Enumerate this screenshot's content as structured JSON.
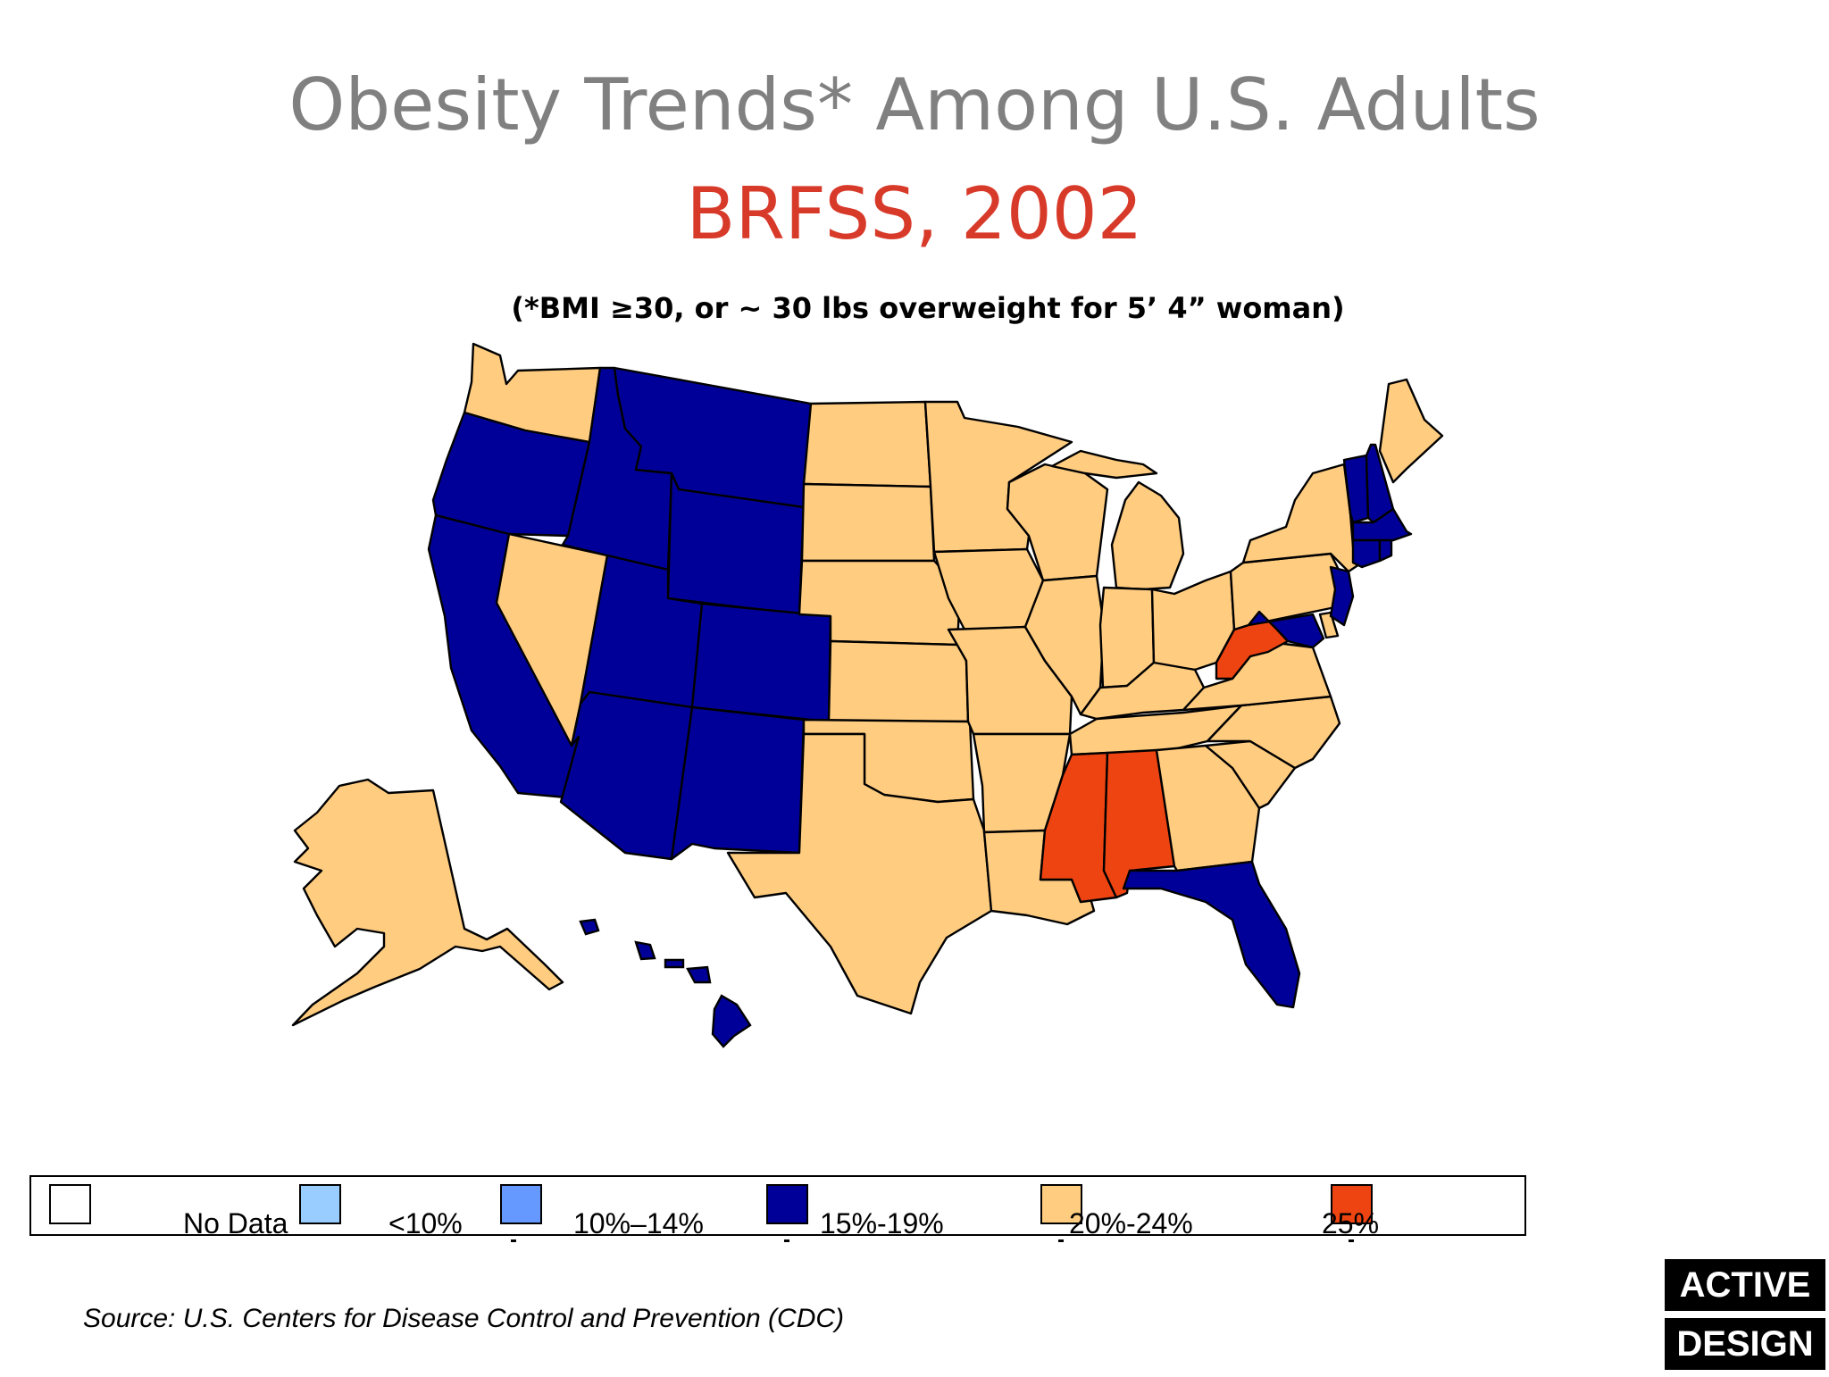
{
  "title": "Obesity Trends* Among U.S. Adults",
  "subtitle": "BRFSS, 2002",
  "note": "(*BMI ≥30, or ~ 30 lbs overweight for 5’ 4” woman)",
  "colors": {
    "no_data": "#ffffff",
    "lt10": "#99ccff",
    "10_14": "#6699ff",
    "15_19": "#000099",
    "20_24": "#ffcc80",
    "25plus": "#ee4411"
  },
  "legend": [
    {
      "label": "No Data",
      "color": "#ffffff"
    },
    {
      "label": "<10%",
      "color": "#99ccff"
    },
    {
      "label": "10%–14%",
      "color": "#6699ff"
    },
    {
      "label": "15%-19%",
      "color": "#000099"
    },
    {
      "label": "20%-24%",
      "color": "#ffcc80"
    },
    {
      "label": "25%",
      "color": "#ee4411"
    }
  ],
  "states": {
    "Washington": "20-24",
    "Oregon": "15-19",
    "California": "15-19",
    "Idaho": "15-19",
    "Nevada": "20-24",
    "Montana": "15-19",
    "Wyoming": "15-19",
    "Utah": "15-19",
    "Arizona": "15-19",
    "Colorado": "15-19",
    "New Mexico": "15-19",
    "North Dakota": "20-24",
    "South Dakota": "20-24",
    "Nebraska": "20-24",
    "Kansas": "20-24",
    "Oklahoma": "20-24",
    "Texas": "20-24",
    "Minnesota": "20-24",
    "Iowa": "20-24",
    "Missouri": "20-24",
    "Arkansas": "20-24",
    "Louisiana": "20-24",
    "Wisconsin": "20-24",
    "Illinois": "20-24",
    "Michigan": "20-24",
    "Indiana": "20-24",
    "Ohio": "20-24",
    "Kentucky": "20-24",
    "Tennessee": "20-24",
    "Mississippi": "25+",
    "Alabama": "25+",
    "Georgia": "20-24",
    "Florida": "15-19",
    "South Carolina": "20-24",
    "North Carolina": "20-24",
    "Virginia": "20-24",
    "West Virginia": "25+",
    "Maryland": "15-19",
    "Delaware": "20-24",
    "New Jersey": "15-19",
    "Pennsylvania": "20-24",
    "New York": "20-24",
    "Vermont": "15-19",
    "New Hampshire": "15-19",
    "Maine": "20-24",
    "Massachusetts": "15-19",
    "Connecticut": "15-19",
    "Rhode Island": "15-19",
    "Alaska": "20-24",
    "Hawaii": "15-19"
  },
  "source": "Source: U.S. Centers for Disease Control and Prevention (CDC)",
  "logo": {
    "line1": "ACTIVE",
    "line2": "DESIGN"
  }
}
